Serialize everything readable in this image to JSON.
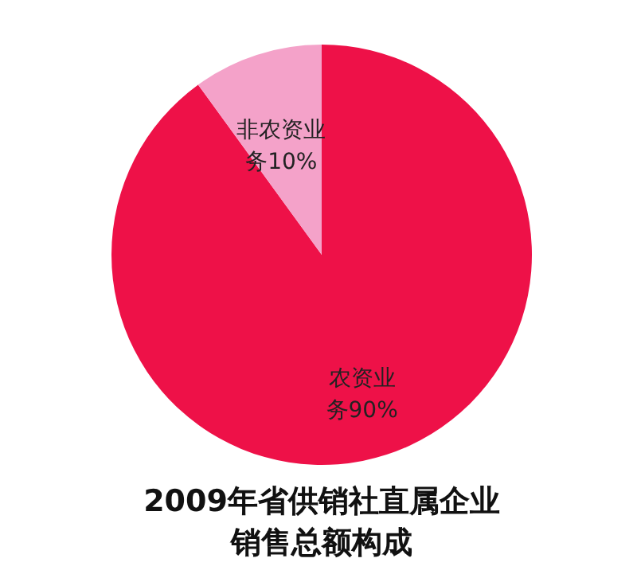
{
  "chart_data": {
    "type": "pie",
    "title": "2009年省供销社直属企业销售总额构成",
    "categories": [
      "农资业务",
      "非农资业务"
    ],
    "values": [
      90,
      10
    ],
    "colors": [
      "#ee1148",
      "#f4a2c9"
    ],
    "value_labels": [
      "90%",
      "10%"
    ],
    "legend": false
  }
}
